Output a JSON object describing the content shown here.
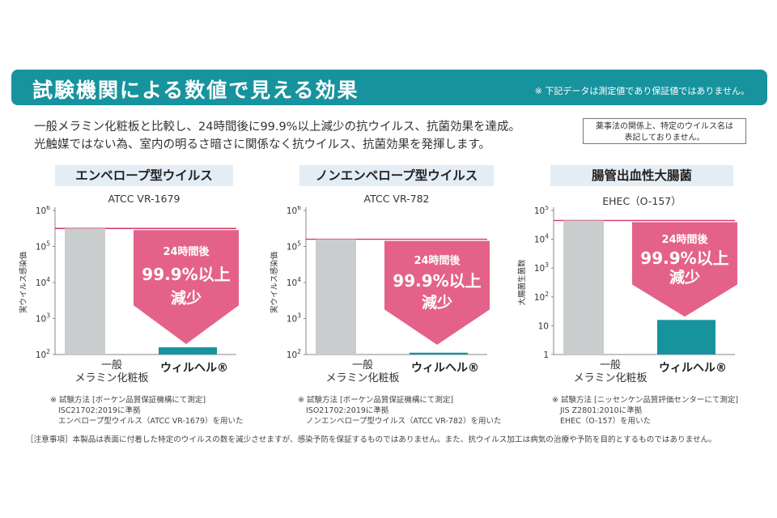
{
  "banner": {
    "title": "試験機関による数値で見える効果",
    "note": "※ 下記データは測定値であり保証値ではありません。"
  },
  "intro": {
    "line1": "一般メラミン化粧板と比較し、24時間後に99.9%以上減少の抗ウイルス、抗菌効果を達成。",
    "line2": "光触媒ではない為、室内の明るさ暗さに関係なく抗ウイルス、抗菌効果を発揮します。"
  },
  "legal_box": {
    "line1": "薬事法の関係上、特定のウイルス名は",
    "line2": "表記しておりません。"
  },
  "colors": {
    "teal": "#17939e",
    "gray_bar": "#c9cdce",
    "pink": "#e2557f",
    "line": "#d6336c"
  },
  "chart_data": [
    {
      "type": "bar",
      "title": "エンベロープ型ウイルス",
      "subtitle": "ATCC VR-1679",
      "ylabel": "実ウイルス感染価",
      "yscale": "log",
      "yticks": [
        {
          "base": "10",
          "exp": "2"
        },
        {
          "base": "10",
          "exp": "3"
        },
        {
          "base": "10",
          "exp": "4"
        },
        {
          "base": "10",
          "exp": "5"
        },
        {
          "base": "10",
          "exp": "6"
        }
      ],
      "ylog": [
        2,
        6
      ],
      "categories": [
        "一般\nメラミン化粧板",
        "ウィルヘル®"
      ],
      "cat1_line1": "一般",
      "cat1_line2": "メラミン化粧板",
      "cat2": "ウィルヘル®",
      "values_log10": [
        5.5,
        2.2
      ],
      "arrow_top": "24時間後",
      "arrow_main": "99.9%以上",
      "arrow_bottom": "減少",
      "note1": "※ 試験方法 [ボーケン品質保証機構にて測定]",
      "note2": "ISC21702:2019に準拠",
      "note3": "エンベロープ型ウイルス（ATCC VR-1679）を用いた"
    },
    {
      "type": "bar",
      "title": "ノンエンベロープ型ウイルス",
      "subtitle": "ATCC VR-782",
      "ylabel": "実ウイルス感染価",
      "yscale": "log",
      "yticks": [
        {
          "base": "10",
          "exp": "2"
        },
        {
          "base": "10",
          "exp": "3"
        },
        {
          "base": "10",
          "exp": "4"
        },
        {
          "base": "10",
          "exp": "5"
        },
        {
          "base": "10",
          "exp": "6"
        }
      ],
      "ylog": [
        2,
        6
      ],
      "categories": [
        "一般\nメラミン化粧板",
        "ウィルヘル®"
      ],
      "cat1_line1": "一般",
      "cat1_line2": "メラミン化粧板",
      "cat2": "ウィルヘル®",
      "values_log10": [
        5.2,
        2.05
      ],
      "arrow_top": "24時間後",
      "arrow_main": "99.9%以上",
      "arrow_bottom": "減少",
      "note1": "※ 試験方法 [ボーケン品質保証機構にて測定]",
      "note2": "ISO21702:2019に準拠",
      "note3": "ノンエンベロープ型ウイルス（ATCC VR-782）を用いた"
    },
    {
      "type": "bar",
      "title": "腸管出血性大腸菌",
      "subtitle": "EHEC（O-157）",
      "ylabel": "大腸菌生菌数",
      "yscale": "log",
      "yticks": [
        {
          "base": "1",
          "exp": ""
        },
        {
          "base": "10",
          "exp": ""
        },
        {
          "base": "10",
          "exp": "2"
        },
        {
          "base": "10",
          "exp": "3"
        },
        {
          "base": "10",
          "exp": "4"
        },
        {
          "base": "10",
          "exp": "5"
        }
      ],
      "ylog": [
        0,
        5
      ],
      "categories": [
        "一般\nメラミン化粧板",
        "ウィルヘル®"
      ],
      "cat1_line1": "一般",
      "cat1_line2": "メラミン化粧板",
      "cat2": "ウィルヘル®",
      "values_log10": [
        4.65,
        1.2
      ],
      "arrow_top": "24時間後",
      "arrow_main": "99.9%以上",
      "arrow_bottom": "減少",
      "note1": "※ 試験方法 [ニッセンケン品質評価センターにて測定]",
      "note2": "JIS Z2801:2010に準拠",
      "note3": "EHEC（O-157）を用いた"
    }
  ],
  "footer": "［注意事項］本製品は表面に付着した特定のウイルスの数を減少させますが、感染予防を保証するものではありません。また、抗ウイルス加工は病気の治療や予防を目的とするものではありません。"
}
